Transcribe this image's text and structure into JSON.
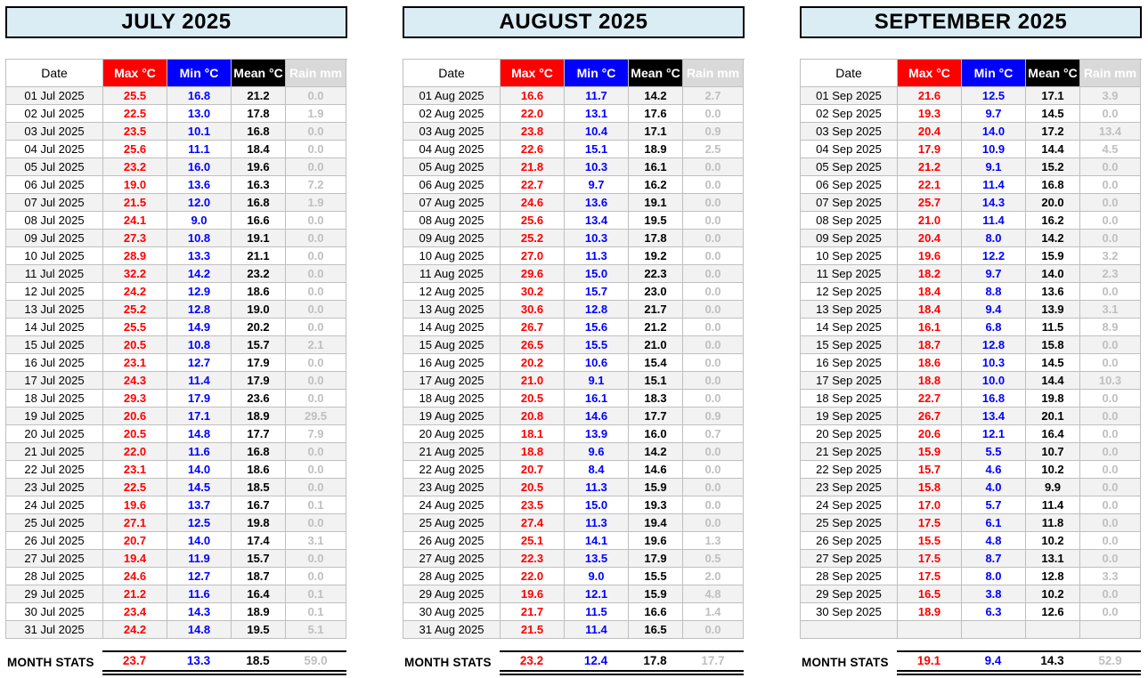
{
  "colors": {
    "title_bg": "#daecf4",
    "max_accent": "#ff0000",
    "min_accent": "#0000ff",
    "mean_accent": "#000000",
    "rain_accent": "#bfbfbf",
    "rain_header_bg": "#d9d9d9",
    "stripe": "#f2f2f2",
    "grid_line": "#bfbfbf"
  },
  "columns": [
    "Date",
    "Max °C",
    "Min °C",
    "Mean °C",
    "Rain mm"
  ],
  "stats_label": "MONTH STATS",
  "rows_per_table": 31,
  "months": [
    {
      "title": "JULY 2025",
      "rows": [
        [
          "01 Jul 2025",
          "25.5",
          "16.8",
          "21.2",
          "0.0"
        ],
        [
          "02 Jul 2025",
          "22.5",
          "13.0",
          "17.8",
          "1.9"
        ],
        [
          "03 Jul 2025",
          "23.5",
          "10.1",
          "16.8",
          "0.0"
        ],
        [
          "04 Jul 2025",
          "25.6",
          "11.1",
          "18.4",
          "0.0"
        ],
        [
          "05 Jul 2025",
          "23.2",
          "16.0",
          "19.6",
          "0.0"
        ],
        [
          "06 Jul 2025",
          "19.0",
          "13.6",
          "16.3",
          "7.2"
        ],
        [
          "07 Jul 2025",
          "21.5",
          "12.0",
          "16.8",
          "1.9"
        ],
        [
          "08 Jul 2025",
          "24.1",
          "9.0",
          "16.6",
          "0.0"
        ],
        [
          "09 Jul 2025",
          "27.3",
          "10.8",
          "19.1",
          "0.0"
        ],
        [
          "10 Jul 2025",
          "28.9",
          "13.3",
          "21.1",
          "0.0"
        ],
        [
          "11 Jul 2025",
          "32.2",
          "14.2",
          "23.2",
          "0.0"
        ],
        [
          "12 Jul 2025",
          "24.2",
          "12.9",
          "18.6",
          "0.0"
        ],
        [
          "13 Jul 2025",
          "25.2",
          "12.8",
          "19.0",
          "0.0"
        ],
        [
          "14 Jul 2025",
          "25.5",
          "14.9",
          "20.2",
          "0.0"
        ],
        [
          "15 Jul 2025",
          "20.5",
          "10.8",
          "15.7",
          "2.1"
        ],
        [
          "16 Jul 2025",
          "23.1",
          "12.7",
          "17.9",
          "0.0"
        ],
        [
          "17 Jul 2025",
          "24.3",
          "11.4",
          "17.9",
          "0.0"
        ],
        [
          "18 Jul 2025",
          "29.3",
          "17.9",
          "23.6",
          "0.0"
        ],
        [
          "19 Jul 2025",
          "20.6",
          "17.1",
          "18.9",
          "29.5"
        ],
        [
          "20 Jul 2025",
          "20.5",
          "14.8",
          "17.7",
          "7.9"
        ],
        [
          "21 Jul 2025",
          "22.0",
          "11.6",
          "16.8",
          "0.0"
        ],
        [
          "22 Jul 2025",
          "23.1",
          "14.0",
          "18.6",
          "0.0"
        ],
        [
          "23 Jul 2025",
          "22.5",
          "14.5",
          "18.5",
          "0.0"
        ],
        [
          "24 Jul 2025",
          "19.6",
          "13.7",
          "16.7",
          "0.1"
        ],
        [
          "25 Jul 2025",
          "27.1",
          "12.5",
          "19.8",
          "0.0"
        ],
        [
          "26 Jul 2025",
          "20.7",
          "14.0",
          "17.4",
          "3.1"
        ],
        [
          "27 Jul 2025",
          "19.4",
          "11.9",
          "15.7",
          "0.0"
        ],
        [
          "28 Jul 2025",
          "24.6",
          "12.7",
          "18.7",
          "0.0"
        ],
        [
          "29 Jul 2025",
          "21.2",
          "11.6",
          "16.4",
          "0.1"
        ],
        [
          "30 Jul 2025",
          "23.4",
          "14.3",
          "18.9",
          "0.1"
        ],
        [
          "31 Jul 2025",
          "24.2",
          "14.8",
          "19.5",
          "5.1"
        ]
      ],
      "stats": [
        "23.7",
        "13.3",
        "18.5",
        "59.0"
      ]
    },
    {
      "title": "AUGUST 2025",
      "rows": [
        [
          "01 Aug 2025",
          "16.6",
          "11.7",
          "14.2",
          "2.7"
        ],
        [
          "02 Aug 2025",
          "22.0",
          "13.1",
          "17.6",
          "0.0"
        ],
        [
          "03 Aug 2025",
          "23.8",
          "10.4",
          "17.1",
          "0.9"
        ],
        [
          "04 Aug 2025",
          "22.6",
          "15.1",
          "18.9",
          "2.5"
        ],
        [
          "05 Aug 2025",
          "21.8",
          "10.3",
          "16.1",
          "0.0"
        ],
        [
          "06 Aug 2025",
          "22.7",
          "9.7",
          "16.2",
          "0.0"
        ],
        [
          "07 Aug 2025",
          "24.6",
          "13.6",
          "19.1",
          "0.0"
        ],
        [
          "08 Aug 2025",
          "25.6",
          "13.4",
          "19.5",
          "0.0"
        ],
        [
          "09 Aug 2025",
          "25.2",
          "10.3",
          "17.8",
          "0.0"
        ],
        [
          "10 Aug 2025",
          "27.0",
          "11.3",
          "19.2",
          "0.0"
        ],
        [
          "11 Aug 2025",
          "29.6",
          "15.0",
          "22.3",
          "0.0"
        ],
        [
          "12 Aug 2025",
          "30.2",
          "15.7",
          "23.0",
          "0.0"
        ],
        [
          "13 Aug 2025",
          "30.6",
          "12.8",
          "21.7",
          "0.0"
        ],
        [
          "14 Aug 2025",
          "26.7",
          "15.6",
          "21.2",
          "0.0"
        ],
        [
          "15 Aug 2025",
          "26.5",
          "15.5",
          "21.0",
          "0.0"
        ],
        [
          "16 Aug 2025",
          "20.2",
          "10.6",
          "15.4",
          "0.0"
        ],
        [
          "17 Aug 2025",
          "21.0",
          "9.1",
          "15.1",
          "0.0"
        ],
        [
          "18 Aug 2025",
          "20.5",
          "16.1",
          "18.3",
          "0.0"
        ],
        [
          "19 Aug 2025",
          "20.8",
          "14.6",
          "17.7",
          "0.9"
        ],
        [
          "20 Aug 2025",
          "18.1",
          "13.9",
          "16.0",
          "0.7"
        ],
        [
          "21 Aug 2025",
          "18.8",
          "9.6",
          "14.2",
          "0.0"
        ],
        [
          "22 Aug 2025",
          "20.7",
          "8.4",
          "14.6",
          "0.0"
        ],
        [
          "23 Aug 2025",
          "20.5",
          "11.3",
          "15.9",
          "0.0"
        ],
        [
          "24 Aug 2025",
          "23.5",
          "15.0",
          "19.3",
          "0.0"
        ],
        [
          "25 Aug 2025",
          "27.4",
          "11.3",
          "19.4",
          "0.0"
        ],
        [
          "26 Aug 2025",
          "25.1",
          "14.1",
          "19.6",
          "1.3"
        ],
        [
          "27 Aug 2025",
          "22.3",
          "13.5",
          "17.9",
          "0.5"
        ],
        [
          "28 Aug 2025",
          "22.0",
          "9.0",
          "15.5",
          "2.0"
        ],
        [
          "29 Aug 2025",
          "19.6",
          "12.1",
          "15.9",
          "4.8"
        ],
        [
          "30 Aug 2025",
          "21.7",
          "11.5",
          "16.6",
          "1.4"
        ],
        [
          "31 Aug 2025",
          "21.5",
          "11.4",
          "16.5",
          "0.0"
        ]
      ],
      "stats": [
        "23.2",
        "12.4",
        "17.8",
        "17.7"
      ]
    },
    {
      "title": "SEPTEMBER 2025",
      "rows": [
        [
          "01 Sep 2025",
          "21.6",
          "12.5",
          "17.1",
          "3.9"
        ],
        [
          "02 Sep 2025",
          "19.3",
          "9.7",
          "14.5",
          "0.0"
        ],
        [
          "03 Sep 2025",
          "20.4",
          "14.0",
          "17.2",
          "13.4"
        ],
        [
          "04 Sep 2025",
          "17.9",
          "10.9",
          "14.4",
          "4.5"
        ],
        [
          "05 Sep 2025",
          "21.2",
          "9.1",
          "15.2",
          "0.0"
        ],
        [
          "06 Sep 2025",
          "22.1",
          "11.4",
          "16.8",
          "0.0"
        ],
        [
          "07 Sep 2025",
          "25.7",
          "14.3",
          "20.0",
          "0.0"
        ],
        [
          "08 Sep 2025",
          "21.0",
          "11.4",
          "16.2",
          "0.0"
        ],
        [
          "09 Sep 2025",
          "20.4",
          "8.0",
          "14.2",
          "0.0"
        ],
        [
          "10 Sep 2025",
          "19.6",
          "12.2",
          "15.9",
          "3.2"
        ],
        [
          "11 Sep 2025",
          "18.2",
          "9.7",
          "14.0",
          "2.3"
        ],
        [
          "12 Sep 2025",
          "18.4",
          "8.8",
          "13.6",
          "0.0"
        ],
        [
          "13 Sep 2025",
          "18.4",
          "9.4",
          "13.9",
          "3.1"
        ],
        [
          "14 Sep 2025",
          "16.1",
          "6.8",
          "11.5",
          "8.9"
        ],
        [
          "15 Sep 2025",
          "18.7",
          "12.8",
          "15.8",
          "0.0"
        ],
        [
          "16 Sep 2025",
          "18.6",
          "10.3",
          "14.5",
          "0.0"
        ],
        [
          "17 Sep 2025",
          "18.8",
          "10.0",
          "14.4",
          "10.3"
        ],
        [
          "18 Sep 2025",
          "22.7",
          "16.8",
          "19.8",
          "0.0"
        ],
        [
          "19 Sep 2025",
          "26.7",
          "13.4",
          "20.1",
          "0.0"
        ],
        [
          "20 Sep 2025",
          "20.6",
          "12.1",
          "16.4",
          "0.0"
        ],
        [
          "21 Sep 2025",
          "15.9",
          "5.5",
          "10.7",
          "0.0"
        ],
        [
          "22 Sep 2025",
          "15.7",
          "4.6",
          "10.2",
          "0.0"
        ],
        [
          "23 Sep 2025",
          "15.8",
          "4.0",
          "9.9",
          "0.0"
        ],
        [
          "24 Sep 2025",
          "17.0",
          "5.7",
          "11.4",
          "0.0"
        ],
        [
          "25 Sep 2025",
          "17.5",
          "6.1",
          "11.8",
          "0.0"
        ],
        [
          "26 Sep 2025",
          "15.5",
          "4.8",
          "10.2",
          "0.0"
        ],
        [
          "27 Sep 2025",
          "17.5",
          "8.7",
          "13.1",
          "0.0"
        ],
        [
          "28 Sep 2025",
          "17.5",
          "8.0",
          "12.8",
          "3.3"
        ],
        [
          "29 Sep 2025",
          "16.5",
          "3.8",
          "10.2",
          "0.0"
        ],
        [
          "30 Sep 2025",
          "18.9",
          "6.3",
          "12.6",
          "0.0"
        ]
      ],
      "stats": [
        "19.1",
        "9.4",
        "14.3",
        "52.9"
      ]
    }
  ]
}
